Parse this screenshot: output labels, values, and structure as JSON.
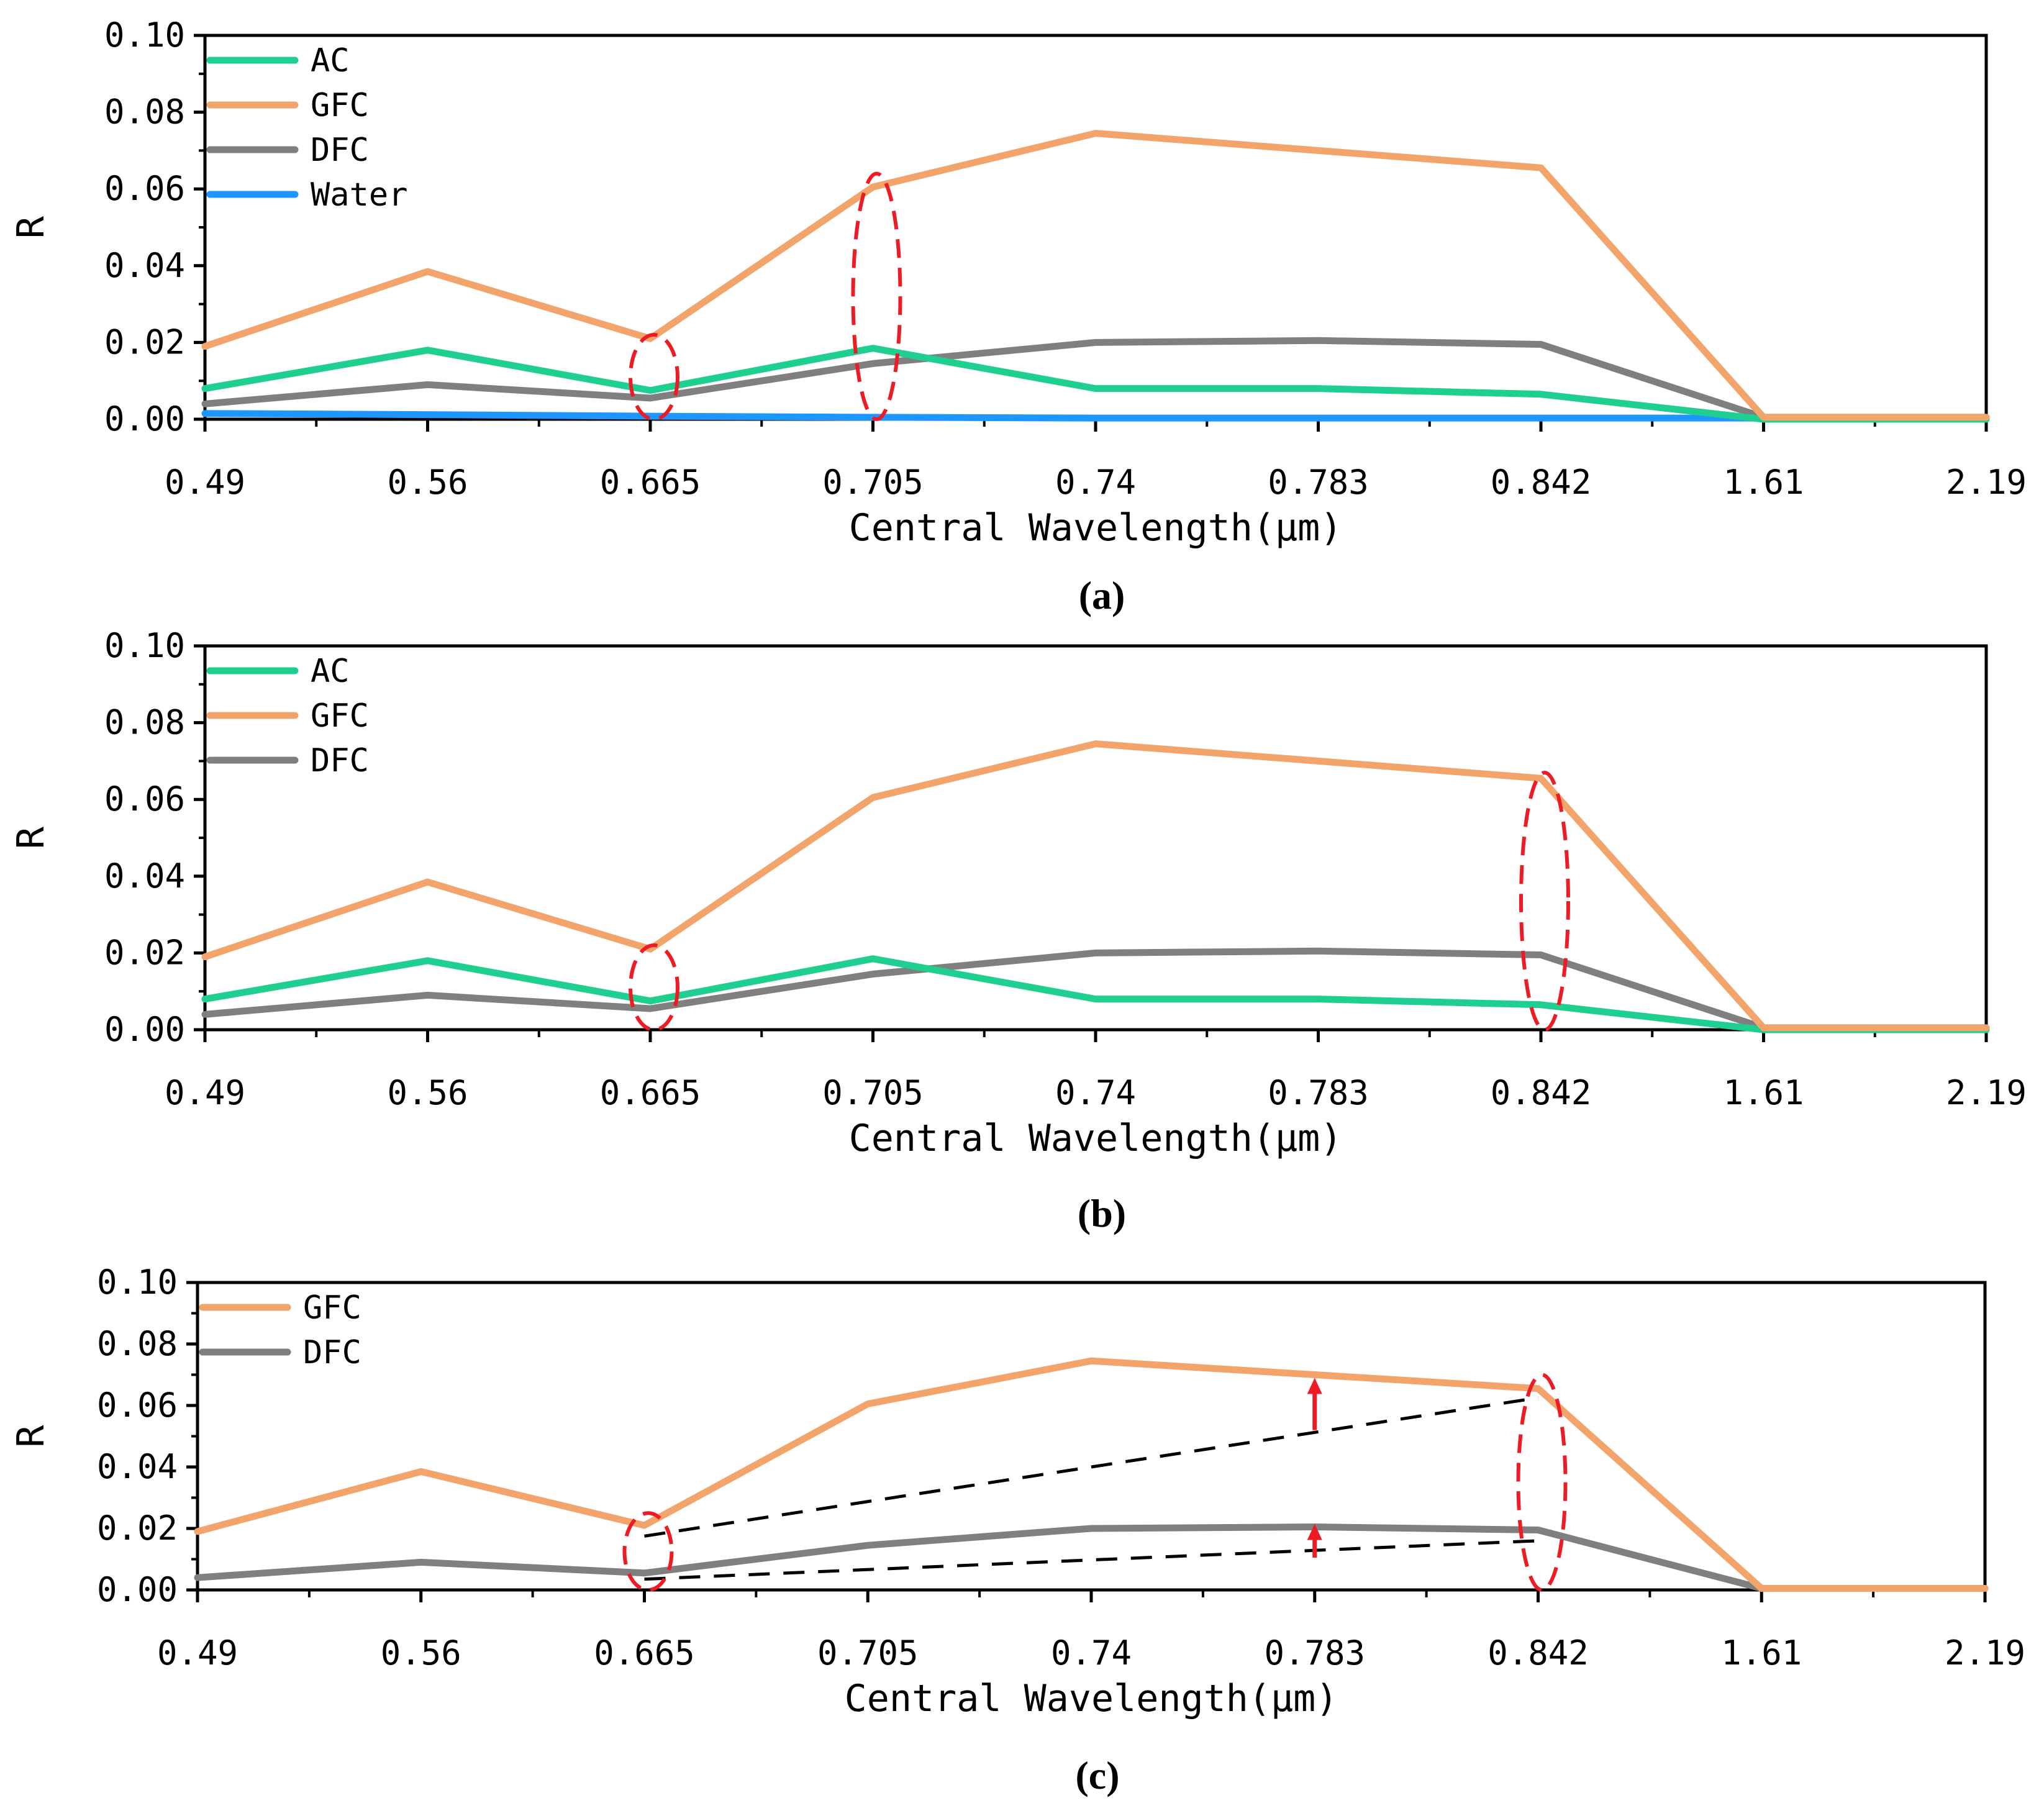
{
  "colors": {
    "AC": "#1ecf8f",
    "GFC": "#f2a46b",
    "DFC": "#7f7f7f",
    "Water": "#1e96ff",
    "annotation": "#ee1b24",
    "trend": "#000000"
  },
  "chart_data": [
    {
      "type": "line",
      "panel_label": "(a)",
      "xlabel": "Central Wavelength(μm)",
      "ylabel": "R",
      "categories": [
        "0.49",
        "0.56",
        "0.665",
        "0.705",
        "0.74",
        "0.783",
        "0.842",
        "1.61",
        "2.19"
      ],
      "yticks": [
        "0.00",
        "0.02",
        "0.04",
        "0.06",
        "0.08",
        "0.10"
      ],
      "ylim": [
        0,
        0.1
      ],
      "legend_position": "top-left",
      "series": [
        {
          "name": "AC",
          "values": [
            0.008,
            0.018,
            0.0075,
            0.0185,
            0.008,
            0.008,
            0.0065,
            0.0,
            0.0
          ]
        },
        {
          "name": "GFC",
          "values": [
            0.019,
            0.0385,
            0.021,
            0.0605,
            0.0745,
            0.07,
            0.0655,
            0.0005,
            0.0005
          ]
        },
        {
          "name": "DFC",
          "values": [
            0.004,
            0.009,
            0.0055,
            0.0145,
            0.02,
            0.0205,
            0.0195,
            0.0005,
            0.0005
          ]
        },
        {
          "name": "Water",
          "values": [
            0.0015,
            0.0012,
            0.0008,
            0.0005,
            0.0003,
            0.0003,
            0.0003,
            0.0003,
            0.0003
          ]
        }
      ],
      "annotations": {
        "ellipses": [
          {
            "category": "0.665",
            "y_range": [
              0.0,
              0.022
            ]
          },
          {
            "category": "0.705",
            "y_range": [
              0.0,
              0.064
            ]
          }
        ]
      }
    },
    {
      "type": "line",
      "panel_label": "(b)",
      "xlabel": "Central Wavelength(μm)",
      "ylabel": "R",
      "categories": [
        "0.49",
        "0.56",
        "0.665",
        "0.705",
        "0.74",
        "0.783",
        "0.842",
        "1.61",
        "2.19"
      ],
      "yticks": [
        "0.00",
        "0.02",
        "0.04",
        "0.06",
        "0.08",
        "0.10"
      ],
      "ylim": [
        0,
        0.1
      ],
      "legend_position": "top-left",
      "series": [
        {
          "name": "AC",
          "values": [
            0.008,
            0.018,
            0.0075,
            0.0185,
            0.008,
            0.008,
            0.0065,
            0.0,
            0.0
          ]
        },
        {
          "name": "GFC",
          "values": [
            0.019,
            0.0385,
            0.021,
            0.0605,
            0.0745,
            0.07,
            0.0655,
            0.0005,
            0.0005
          ]
        },
        {
          "name": "DFC",
          "values": [
            0.004,
            0.009,
            0.0055,
            0.0145,
            0.02,
            0.0205,
            0.0195,
            0.0005,
            0.0005
          ]
        }
      ],
      "annotations": {
        "ellipses": [
          {
            "category": "0.665",
            "y_range": [
              0.0,
              0.022
            ]
          },
          {
            "category": "0.842",
            "y_range": [
              0.0,
              0.067
            ]
          }
        ]
      }
    },
    {
      "type": "line",
      "panel_label": "(c)",
      "xlabel": "Central Wavelength(μm)",
      "ylabel": "R",
      "categories": [
        "0.49",
        "0.56",
        "0.665",
        "0.705",
        "0.74",
        "0.783",
        "0.842",
        "1.61",
        "2.19"
      ],
      "yticks": [
        "0.00",
        "0.02",
        "0.04",
        "0.06",
        "0.08",
        "0.10"
      ],
      "ylim": [
        0,
        0.1
      ],
      "legend_position": "top-left",
      "series": [
        {
          "name": "GFC",
          "values": [
            0.019,
            0.0385,
            0.021,
            0.0605,
            0.0745,
            0.07,
            0.0655,
            0.0005,
            0.0005
          ]
        },
        {
          "name": "DFC",
          "values": [
            0.004,
            0.009,
            0.0055,
            0.0145,
            0.02,
            0.0205,
            0.0195,
            0.0005,
            0.0005
          ]
        }
      ],
      "annotations": {
        "ellipses": [
          {
            "category": "0.665",
            "y_range": [
              0.0,
              0.025
            ]
          },
          {
            "category": "0.842",
            "y_range": [
              0.0,
              0.07
            ]
          }
        ],
        "trend_lines": [
          {
            "from_category": "0.665",
            "to_category": "0.842",
            "from_value": 0.0175,
            "to_value": 0.0625
          },
          {
            "from_category": "0.665",
            "to_category": "0.842",
            "from_value": 0.0035,
            "to_value": 0.016
          }
        ],
        "arrows": [
          {
            "category": "0.783",
            "from_value": 0.052,
            "to_value": 0.069
          },
          {
            "category": "0.783",
            "from_value": 0.0105,
            "to_value": 0.0215
          }
        ]
      }
    }
  ]
}
